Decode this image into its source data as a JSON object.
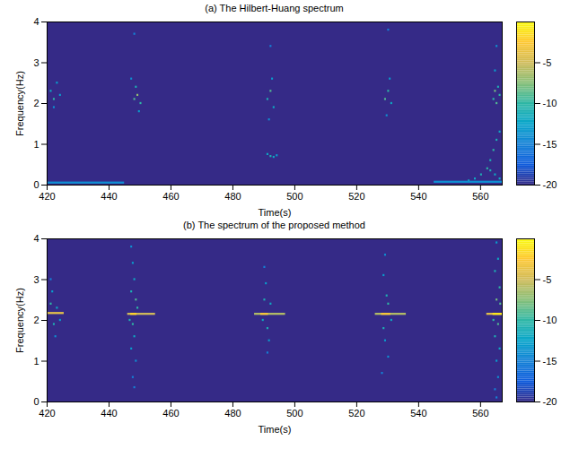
{
  "chart_data": [
    {
      "type": "heatmap",
      "title": "(a) The Hilbert-Huang spectrum",
      "xlabel": "Time(s)",
      "ylabel": "Frequency(Hz)",
      "xlim": [
        420,
        567
      ],
      "xticks": [
        420,
        440,
        460,
        480,
        500,
        520,
        540,
        560
      ],
      "ylim": [
        0,
        4
      ],
      "yticks": [
        0,
        1,
        2,
        3,
        4
      ],
      "colorbar": {
        "range": [
          -20,
          0
        ],
        "ticks": [
          -5,
          -10,
          -15,
          -20
        ]
      },
      "cells": [
        [
          421,
          421.6,
          2.3,
          -12
        ],
        [
          422,
          422.6,
          2.1,
          -10
        ],
        [
          423,
          423.6,
          2.5,
          -13
        ],
        [
          422,
          422.6,
          1.9,
          -14
        ],
        [
          424,
          424.6,
          2.2,
          -13
        ],
        [
          448,
          448.6,
          2.1,
          -9
        ],
        [
          449,
          449.6,
          2.2,
          -7
        ],
        [
          450,
          450.6,
          2.0,
          -10
        ],
        [
          448.5,
          449.1,
          2.4,
          -11
        ],
        [
          449.5,
          450.1,
          1.8,
          -13
        ],
        [
          447,
          447.6,
          2.6,
          -14
        ],
        [
          448,
          448.6,
          3.7,
          -15
        ],
        [
          491,
          491.6,
          2.1,
          -11
        ],
        [
          492,
          492.6,
          2.3,
          -9
        ],
        [
          493,
          493.6,
          1.9,
          -12
        ],
        [
          492.5,
          493.1,
          2.6,
          -13
        ],
        [
          491.5,
          492.1,
          1.6,
          -14
        ],
        [
          492,
          492.6,
          3.4,
          -15
        ],
        [
          491,
          491.6,
          0.75,
          -12
        ],
        [
          492,
          492.6,
          0.7,
          -11
        ],
        [
          493,
          493.6,
          0.68,
          -12
        ],
        [
          494,
          494.6,
          0.72,
          -13
        ],
        [
          529,
          529.6,
          2.1,
          -9
        ],
        [
          530,
          530.6,
          2.3,
          -10
        ],
        [
          531,
          531.6,
          2.0,
          -12
        ],
        [
          530.5,
          531.1,
          2.6,
          -13
        ],
        [
          529.5,
          530.1,
          1.7,
          -14
        ],
        [
          530,
          530.6,
          3.8,
          -15
        ],
        [
          564,
          564.6,
          2.1,
          -10
        ],
        [
          564.5,
          565.1,
          2.3,
          -8
        ],
        [
          565,
          565.6,
          2.0,
          -9
        ],
        [
          565.5,
          566.1,
          2.4,
          -11
        ],
        [
          566,
          566.6,
          2.2,
          -10
        ],
        [
          564.5,
          565.1,
          2.8,
          -13
        ],
        [
          565,
          565.6,
          3.4,
          -14
        ],
        [
          556,
          556.6,
          0.1,
          -12
        ],
        [
          558,
          558.6,
          0.15,
          -12
        ],
        [
          560,
          560.6,
          0.25,
          -11
        ],
        [
          562,
          562.6,
          0.4,
          -10
        ],
        [
          563,
          563.6,
          0.6,
          -11
        ],
        [
          564,
          564.6,
          0.85,
          -10
        ],
        [
          565,
          565.6,
          1.1,
          -11
        ],
        [
          566,
          566.6,
          1.3,
          -12
        ],
        [
          563,
          563.6,
          0.35,
          -11
        ],
        [
          564.5,
          565.1,
          0.25,
          -12
        ],
        [
          566,
          566.6,
          0.15,
          -12
        ],
        [
          420,
          445,
          0.05,
          -14
        ],
        [
          545,
          567,
          0.07,
          -14
        ]
      ]
    },
    {
      "type": "heatmap",
      "title": "(b) The spectrum of the proposed method",
      "xlabel": "Time(s)",
      "ylabel": "Frequency(Hz)",
      "xlim": [
        420,
        567
      ],
      "xticks": [
        420,
        440,
        460,
        480,
        500,
        520,
        540,
        560
      ],
      "ylim": [
        0,
        4
      ],
      "yticks": [
        0,
        1,
        2,
        3,
        4
      ],
      "colorbar": {
        "range": [
          -20,
          0
        ],
        "ticks": [
          -5,
          -10,
          -15,
          -20
        ]
      },
      "cells": [
        [
          420,
          425.5,
          2.17,
          -4
        ],
        [
          421,
          421.6,
          2.4,
          -10
        ],
        [
          422,
          422.6,
          1.9,
          -11
        ],
        [
          421.5,
          422.1,
          2.7,
          -13
        ],
        [
          422.5,
          423.1,
          1.6,
          -14
        ],
        [
          421,
          421.6,
          3.0,
          -15
        ],
        [
          423,
          423.6,
          2.3,
          -12
        ],
        [
          424,
          424.6,
          2.0,
          -13
        ],
        [
          446,
          455,
          2.15,
          -5
        ],
        [
          447,
          449,
          2.15,
          -2
        ],
        [
          447,
          447.6,
          3.8,
          -14
        ],
        [
          447.5,
          448.1,
          3.4,
          -13
        ],
        [
          448,
          448.6,
          3.0,
          -12
        ],
        [
          447,
          447.6,
          2.7,
          -11
        ],
        [
          448.5,
          449.1,
          2.5,
          -9
        ],
        [
          447.5,
          448.1,
          1.9,
          -10
        ],
        [
          448,
          448.6,
          1.6,
          -12
        ],
        [
          447,
          447.6,
          1.3,
          -13
        ],
        [
          448.5,
          449.1,
          1.0,
          -14
        ],
        [
          447.5,
          448.1,
          0.6,
          -15
        ],
        [
          448,
          448.6,
          0.35,
          -15
        ],
        [
          449,
          449.6,
          2.3,
          -10
        ],
        [
          446.5,
          447.1,
          2.0,
          -11
        ],
        [
          487,
          497,
          2.15,
          -6
        ],
        [
          489,
          491.5,
          2.15,
          -3
        ],
        [
          490,
          490.6,
          2.5,
          -11
        ],
        [
          491,
          491.6,
          1.8,
          -11
        ],
        [
          490.5,
          491.1,
          2.9,
          -13
        ],
        [
          491.5,
          492.1,
          1.5,
          -13
        ],
        [
          490,
          490.6,
          3.3,
          -15
        ],
        [
          492,
          492.6,
          2.4,
          -12
        ],
        [
          491,
          491.6,
          1.2,
          -15
        ],
        [
          489.5,
          490.1,
          2.0,
          -12
        ],
        [
          526,
          536,
          2.15,
          -6
        ],
        [
          528,
          531,
          2.15,
          -3
        ],
        [
          529,
          529.6,
          3.6,
          -14
        ],
        [
          528.5,
          529.1,
          3.1,
          -13
        ],
        [
          529.5,
          530.1,
          2.6,
          -11
        ],
        [
          530,
          530.6,
          2.4,
          -10
        ],
        [
          528.5,
          529.1,
          1.8,
          -11
        ],
        [
          529,
          529.6,
          1.5,
          -13
        ],
        [
          530,
          530.6,
          1.1,
          -14
        ],
        [
          528,
          528.6,
          0.7,
          -15
        ],
        [
          531,
          531.6,
          2.0,
          -12
        ],
        [
          562,
          567,
          2.15,
          -4
        ],
        [
          564,
          567,
          2.15,
          -1
        ],
        [
          565,
          565.6,
          3.9,
          -13
        ],
        [
          565.5,
          566.1,
          3.5,
          -12
        ],
        [
          564.5,
          565.1,
          3.2,
          -11
        ],
        [
          566,
          566.6,
          2.8,
          -10
        ],
        [
          565,
          565.6,
          2.5,
          -8
        ],
        [
          565.5,
          566.1,
          1.9,
          -9
        ],
        [
          564.5,
          565.1,
          1.6,
          -11
        ],
        [
          566,
          566.6,
          1.3,
          -12
        ],
        [
          565,
          565.6,
          1.0,
          -13
        ],
        [
          565.5,
          566.1,
          0.6,
          -14
        ],
        [
          564.5,
          565.1,
          0.3,
          -15
        ],
        [
          566.2,
          566.8,
          2.4,
          -9
        ],
        [
          564,
          564.6,
          2.0,
          -10
        ],
        [
          565,
          565.6,
          0.1,
          -15
        ]
      ]
    }
  ]
}
